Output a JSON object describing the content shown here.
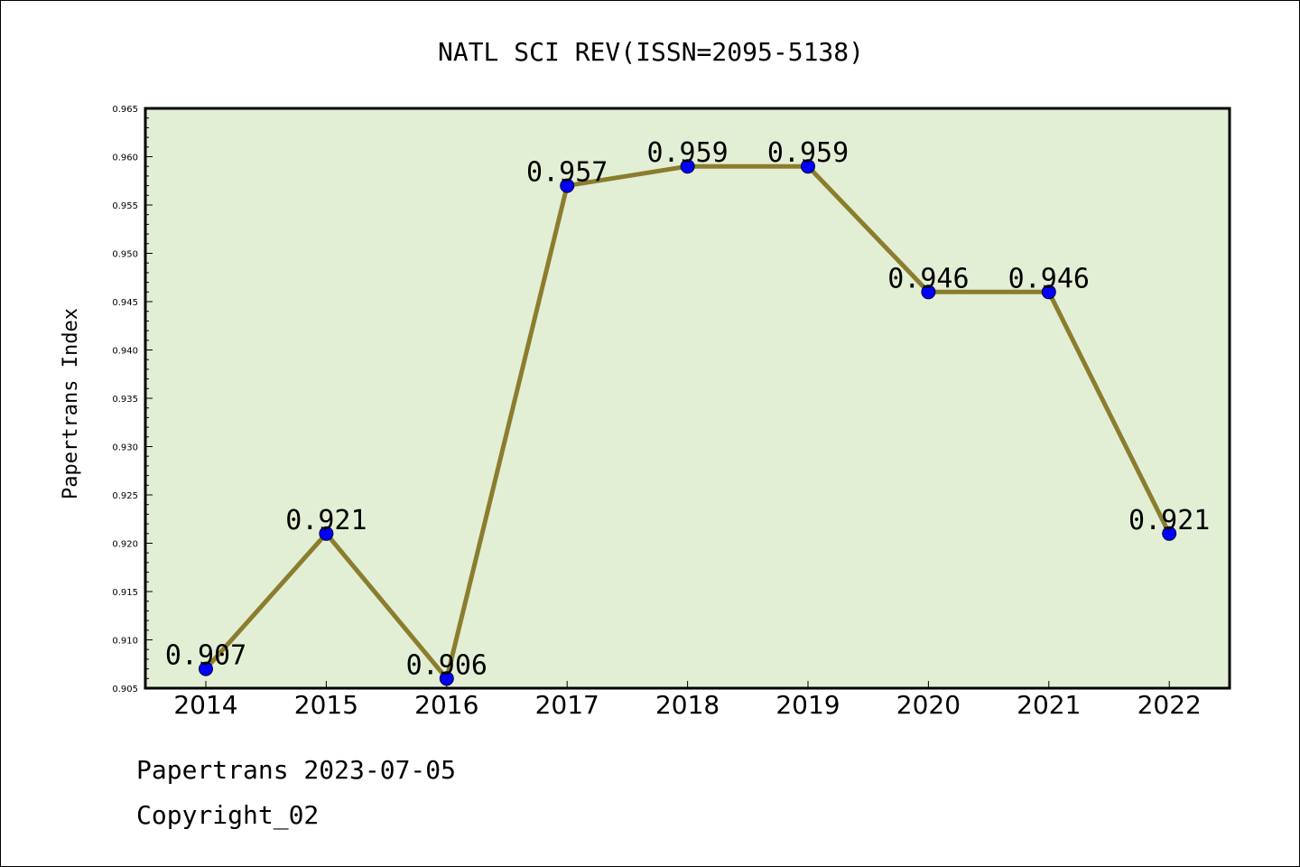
{
  "chart_data": {
    "type": "line",
    "title": "NATL SCI REV(ISSN=2095-5138)",
    "xlabel": "",
    "ylabel": "Papertrans Index",
    "categories": [
      "2014",
      "2015",
      "2016",
      "2017",
      "2018",
      "2019",
      "2020",
      "2021",
      "2022"
    ],
    "series": [
      {
        "values": [
          0.907,
          0.921,
          0.906,
          0.957,
          0.959,
          0.959,
          0.946,
          0.946,
          0.921
        ],
        "data_labels": [
          "0.907",
          "0.921",
          "0.906",
          "0.957",
          "0.959",
          "0.959",
          "0.946",
          "0.946",
          "0.921"
        ]
      }
    ],
    "ylim": [
      0.905,
      0.965
    ],
    "yticks": [
      "0.905",
      "0.910",
      "0.915",
      "0.920",
      "0.925",
      "0.930",
      "0.935",
      "0.940",
      "0.945",
      "0.950",
      "0.955",
      "0.960",
      "0.965"
    ],
    "grid": false,
    "legend": "none",
    "colors": {
      "plot_background": "#e2efd5",
      "line": "#8b7d2e",
      "marker": "#0000ff"
    }
  },
  "footer": {
    "line1": "Papertrans 2023-07-05",
    "line2": "Copyright_02"
  }
}
